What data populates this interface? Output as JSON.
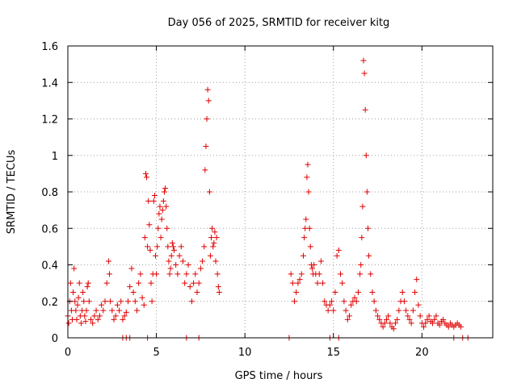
{
  "chart_data": {
    "type": "scatter",
    "title": "Day 056 of 2025, SRMTID for receiver kitg",
    "xlabel": "GPS time / hours",
    "ylabel": "SRMTID / TECUs",
    "xlim": [
      0,
      24
    ],
    "ylim": [
      0,
      1.6
    ],
    "xticks": [
      "0",
      "5",
      "10",
      "15",
      "20"
    ],
    "yticks": [
      "0",
      "0.2",
      "0.4",
      "0.6",
      "0.8",
      "1",
      "1.2",
      "1.4",
      "1.6"
    ],
    "grid": true,
    "marker": "plus",
    "color": "#e00000",
    "series": [
      {
        "name": "SRMTID",
        "x": [
          0.0,
          0.05,
          0.1,
          0.15,
          0.2,
          0.25,
          0.3,
          0.35,
          0.4,
          0.45,
          0.5,
          0.55,
          0.6,
          0.65,
          0.7,
          0.75,
          0.8,
          0.85,
          0.9,
          0.95,
          1.0,
          1.05,
          1.1,
          1.15,
          1.2,
          1.3,
          1.4,
          1.5,
          1.6,
          1.7,
          1.8,
          1.9,
          2.0,
          2.1,
          2.2,
          2.3,
          2.35,
          2.4,
          2.5,
          2.6,
          2.7,
          2.8,
          2.9,
          3.0,
          3.1,
          3.2,
          3.3,
          3.4,
          3.5,
          3.6,
          3.7,
          3.8,
          3.9,
          4.0,
          4.1,
          4.2,
          4.3,
          4.35,
          4.4,
          4.45,
          4.5,
          4.55,
          4.6,
          4.65,
          4.7,
          4.75,
          4.8,
          4.85,
          4.9,
          4.95,
          5.0,
          5.05,
          5.1,
          5.15,
          5.2,
          5.25,
          5.3,
          5.35,
          5.4,
          5.45,
          5.5,
          5.55,
          5.6,
          5.65,
          5.7,
          5.75,
          5.8,
          5.85,
          5.9,
          5.95,
          6.0,
          6.1,
          6.2,
          6.3,
          6.4,
          6.5,
          6.6,
          6.7,
          6.8,
          6.9,
          7.0,
          7.1,
          7.2,
          7.3,
          7.4,
          7.5,
          7.6,
          7.7,
          7.75,
          7.8,
          7.85,
          7.9,
          7.95,
          8.0,
          8.05,
          8.1,
          8.15,
          8.2,
          8.25,
          8.3,
          8.35,
          8.4,
          8.45,
          8.5,
          8.55,
          12.6,
          12.7,
          12.8,
          12.9,
          13.0,
          13.1,
          13.2,
          13.3,
          13.35,
          13.4,
          13.45,
          13.5,
          13.55,
          13.6,
          13.65,
          13.7,
          13.75,
          13.8,
          13.85,
          13.9,
          14.0,
          14.1,
          14.2,
          14.3,
          14.4,
          14.5,
          14.6,
          14.7,
          14.8,
          14.9,
          15.0,
          15.1,
          15.2,
          15.3,
          15.4,
          15.5,
          15.6,
          15.7,
          15.8,
          15.9,
          16.0,
          16.1,
          16.2,
          16.3,
          16.4,
          16.5,
          16.55,
          16.6,
          16.65,
          16.7,
          16.75,
          16.8,
          16.85,
          16.9,
          16.95,
          17.0,
          17.1,
          17.2,
          17.3,
          17.4,
          17.5,
          17.6,
          17.7,
          17.8,
          17.9,
          18.0,
          18.1,
          18.2,
          18.3,
          18.4,
          18.5,
          18.6,
          18.7,
          18.8,
          18.9,
          19.0,
          19.1,
          19.2,
          19.3,
          19.4,
          19.5,
          19.6,
          19.7,
          19.8,
          19.9,
          20.0,
          20.1,
          20.2,
          20.3,
          20.4,
          20.5,
          20.6,
          20.7,
          20.8,
          20.9,
          21.0,
          21.1,
          21.2,
          21.3,
          21.4,
          21.5,
          21.6,
          21.7,
          21.8,
          21.9,
          22.0,
          22.1,
          22.2,
          3.1,
          3.3,
          3.5,
          4.5,
          6.7,
          7.4,
          12.5,
          14.8,
          15.3,
          21.8,
          22.3,
          22.6
        ],
        "y": [
          0.12,
          0.08,
          0.2,
          0.3,
          0.15,
          0.1,
          0.25,
          0.38,
          0.2,
          0.15,
          0.1,
          0.18,
          0.22,
          0.3,
          0.12,
          0.08,
          0.15,
          0.25,
          0.2,
          0.12,
          0.09,
          0.15,
          0.28,
          0.3,
          0.2,
          0.1,
          0.08,
          0.12,
          0.15,
          0.1,
          0.12,
          0.18,
          0.15,
          0.2,
          0.3,
          0.42,
          0.35,
          0.2,
          0.15,
          0.1,
          0.12,
          0.18,
          0.15,
          0.2,
          0.1,
          0.12,
          0.14,
          0.2,
          0.28,
          0.38,
          0.25,
          0.2,
          0.15,
          0.3,
          0.35,
          0.22,
          0.18,
          0.55,
          0.9,
          0.88,
          0.5,
          0.75,
          0.62,
          0.48,
          0.3,
          0.2,
          0.35,
          0.75,
          0.78,
          0.45,
          0.35,
          0.5,
          0.6,
          0.68,
          0.72,
          0.55,
          0.65,
          0.7,
          0.75,
          0.8,
          0.82,
          0.72,
          0.6,
          0.5,
          0.42,
          0.35,
          0.38,
          0.45,
          0.52,
          0.5,
          0.48,
          0.4,
          0.35,
          0.45,
          0.5,
          0.42,
          0.3,
          0.35,
          0.4,
          0.28,
          0.2,
          0.3,
          0.35,
          0.25,
          0.3,
          0.38,
          0.42,
          0.5,
          0.92,
          1.05,
          1.2,
          1.36,
          1.3,
          0.8,
          0.45,
          0.55,
          0.6,
          0.5,
          0.52,
          0.58,
          0.42,
          0.55,
          0.35,
          0.28,
          0.25,
          0.35,
          0.3,
          0.2,
          0.25,
          0.3,
          0.32,
          0.35,
          0.45,
          0.55,
          0.6,
          0.65,
          0.88,
          0.95,
          0.8,
          0.6,
          0.5,
          0.4,
          0.38,
          0.35,
          0.4,
          0.35,
          0.3,
          0.35,
          0.42,
          0.3,
          0.2,
          0.18,
          0.15,
          0.18,
          0.2,
          0.15,
          0.25,
          0.45,
          0.48,
          0.35,
          0.3,
          0.2,
          0.15,
          0.1,
          0.12,
          0.18,
          0.2,
          0.22,
          0.2,
          0.25,
          0.35,
          0.4,
          0.55,
          0.72,
          1.52,
          1.45,
          1.25,
          1.0,
          0.8,
          0.6,
          0.45,
          0.35,
          0.25,
          0.2,
          0.15,
          0.12,
          0.1,
          0.08,
          0.06,
          0.08,
          0.1,
          0.12,
          0.08,
          0.06,
          0.05,
          0.08,
          0.1,
          0.15,
          0.2,
          0.25,
          0.2,
          0.15,
          0.12,
          0.1,
          0.08,
          0.15,
          0.25,
          0.32,
          0.18,
          0.12,
          0.08,
          0.06,
          0.08,
          0.1,
          0.12,
          0.09,
          0.08,
          0.1,
          0.12,
          0.08,
          0.07,
          0.09,
          0.1,
          0.08,
          0.07,
          0.06,
          0.08,
          0.07,
          0.06,
          0.07,
          0.08,
          0.07,
          0.06,
          0.0,
          0.0,
          0.0,
          0.0,
          0.0,
          0.0,
          0.0,
          0.0,
          0.0,
          0.0,
          0.0,
          0.0
        ]
      }
    ]
  }
}
